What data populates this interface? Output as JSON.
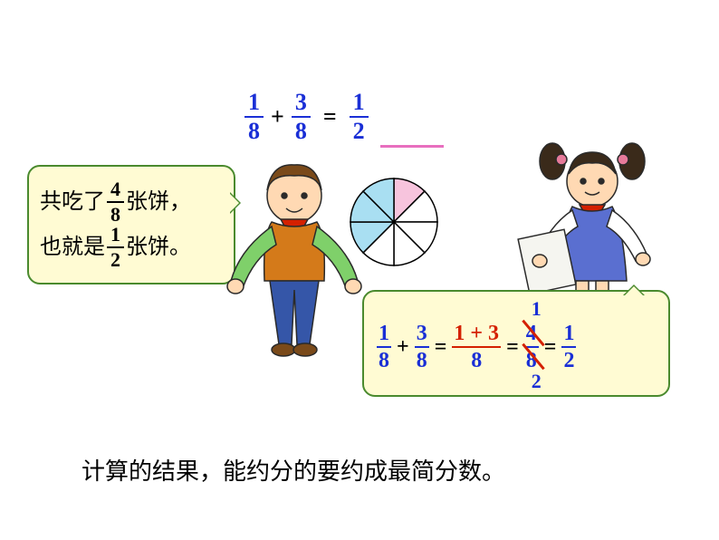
{
  "top_equation": {
    "f1": {
      "num": "1",
      "den": "8"
    },
    "plus": "+",
    "f2": {
      "num": "3",
      "den": "8"
    },
    "equals": "=",
    "result": {
      "num": "1",
      "den": "2"
    },
    "color_fractions": "#1a2fd6",
    "color_ops": "#000000",
    "underline_color": "#e86fbf"
  },
  "bubble1": {
    "line1_prefix": "共吃了",
    "line1_fraction": {
      "num": "4",
      "den": "8"
    },
    "line1_suffix": "张饼，",
    "line2_prefix": "也就是",
    "line2_fraction": {
      "num": "1",
      "den": "2"
    },
    "line2_suffix": "张饼。",
    "bg": "#fffbd3",
    "border": "#4a8a2e"
  },
  "bubble2": {
    "f1": {
      "num": "1",
      "den": "8"
    },
    "plus": "+",
    "f2": {
      "num": "3",
      "den": "8"
    },
    "eq1": "=",
    "f3": {
      "num": "1 + 3",
      "den": "8"
    },
    "eq2": "=",
    "cancel": {
      "num": "4",
      "den": "8",
      "top_anno": "1",
      "bottom_anno": "2"
    },
    "eq3": "=",
    "f4": {
      "num": "1",
      "den": "2"
    },
    "strike_color": "#d42000",
    "color_fractions": "#1a2fd6",
    "num_color_f3": "#d42000"
  },
  "pie": {
    "slices": 8,
    "radius": 48,
    "fills": [
      "#f7c4dd",
      "#ffffff",
      "#ffffff",
      "#ffffff",
      "#ffffff",
      "#a9dff2",
      "#a9dff2",
      "#a9dff2"
    ],
    "stroke": "#000000"
  },
  "bottom_text": "计算的结果，能约分的要约成最简分数。",
  "boy": {
    "hair": "#7a4a1a",
    "skin": "#ffd9b3",
    "vest": "#d47a1a",
    "shirt": "#7fd06a",
    "scarf": "#d42000",
    "pants": "#3556a8",
    "outline": "#2a2a2a"
  },
  "girl": {
    "hair": "#3a2a1a",
    "skin": "#ffd9b3",
    "dress": "#5a6fd0",
    "shirt": "#ffffff",
    "scarf": "#d42000",
    "paper": "#f5f5f0",
    "bow": "#e67a9a",
    "outline": "#2a2a2a"
  }
}
